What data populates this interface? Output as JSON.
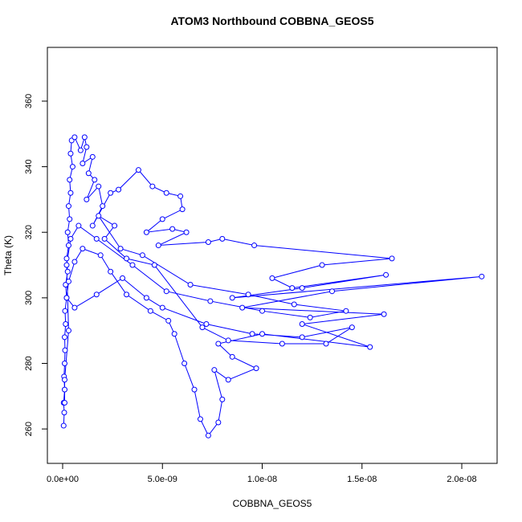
{
  "chart_data": {
    "type": "line",
    "markers": true,
    "title": "ATOM3 Northbound COBBNA_GEOS5",
    "x_label": "COBBNA_GEOS5",
    "y_label": "Theta (K)",
    "color": "#0000ff",
    "xlim": [
      -7.65e-10,
      2.177e-08
    ],
    "ylim": [
      249.5,
      376.4
    ],
    "xticks": [
      {
        "value": 0,
        "label": "0.0e+00"
      },
      {
        "value": 5e-09,
        "label": "5.0e-09"
      },
      {
        "value": 1e-08,
        "label": "1.0e-08"
      },
      {
        "value": 1.5e-08,
        "label": "1.5e-08"
      },
      {
        "value": 2e-08,
        "label": "2.0e-08"
      }
    ],
    "yticks": [
      260,
      280,
      300,
      320,
      340,
      360
    ],
    "x": [
      5e-11,
      8e-11,
      5e-11,
      1e-10,
      7e-11,
      1e-10,
      1.2e-10,
      1e-10,
      1.5e-10,
      1.2e-10,
      2e-10,
      1.5e-10,
      2.5e-10,
      2e-10,
      3e-10,
      2.5e-10,
      3.5e-10,
      3e-10,
      4e-10,
      3.5e-10,
      5e-10,
      4e-10,
      4.5e-10,
      6e-10,
      9e-10,
      1.1e-09,
      1.2e-09,
      1e-09,
      1.5e-09,
      1.3e-09,
      1.6e-09,
      1.2e-09,
      1.8e-09,
      2e-09,
      1.5e-09,
      2.4e-09,
      2.8e-09,
      3.8e-09,
      4.5e-09,
      5.2e-09,
      5.9e-09,
      6e-09,
      5e-09,
      4.2e-09,
      5.5e-09,
      6.2e-09,
      4.8e-09,
      7.3e-09,
      8e-09,
      9.6e-09,
      1.65e-08,
      1.3e-08,
      1.05e-08,
      1.15e-08,
      1.62e-08,
      1.2e-08,
      8.5e-09,
      2.1e-08,
      1.35e-08,
      9e-09,
      1.61e-08,
      1.2e-08,
      1.54e-08,
      1e-08,
      7.8e-09,
      8.5e-09,
      9.7e-09,
      8.3e-09,
      7.6e-09,
      8e-09,
      7.8e-09,
      7.3e-09,
      6.9e-09,
      6.6e-09,
      6.1e-09,
      5.6e-09,
      5.3e-09,
      4.4e-09,
      3.2e-09,
      2.4e-09,
      1.9e-09,
      1e-09,
      6e-10,
      3e-10,
      2e-10,
      6e-10,
      1.7e-09,
      3e-09,
      4.2e-09,
      5e-09,
      7.2e-09,
      9.5e-09,
      1.2e-08,
      1.45e-08,
      1.32e-08,
      1.1e-08,
      8.3e-09,
      7e-09,
      4.6e-09,
      3.2e-09,
      2.1e-09,
      2.6e-09,
      1.8e-09,
      2.9e-09,
      4e-09,
      6.4e-09,
      9.3e-09,
      1.16e-08,
      1.42e-08,
      1.24e-08,
      1e-08,
      7.4e-09,
      5.2e-09,
      3.5e-09,
      1.7e-09,
      8e-10,
      4e-10,
      2e-10,
      3e-10,
      1e-10,
      1e-10
    ],
    "values": [
      261,
      265,
      268,
      272,
      276,
      280,
      284,
      288,
      292,
      296,
      300,
      304,
      308,
      312,
      316,
      320,
      324,
      328,
      332,
      336,
      340,
      344,
      348,
      349,
      345,
      349,
      346,
      341,
      343,
      338,
      336,
      330,
      334,
      328,
      322,
      332,
      333,
      339,
      334,
      332,
      331,
      327,
      324,
      320,
      321,
      320,
      316,
      317,
      318,
      316,
      312,
      310,
      306,
      303,
      307,
      303,
      300,
      306.5,
      302,
      297,
      295,
      292,
      285,
      289,
      286,
      282,
      278.5,
      275,
      278,
      269,
      262,
      258,
      263,
      272,
      280,
      289,
      293,
      296,
      301,
      308,
      313,
      315,
      311,
      305,
      300,
      297,
      301,
      306,
      300,
      297,
      292,
      289,
      288,
      291,
      286,
      286,
      287,
      291,
      310,
      312,
      318,
      322,
      325,
      315,
      313,
      304,
      301,
      298,
      296,
      294,
      296,
      299,
      302,
      310,
      318,
      322,
      318,
      310,
      290,
      275,
      268
    ]
  }
}
